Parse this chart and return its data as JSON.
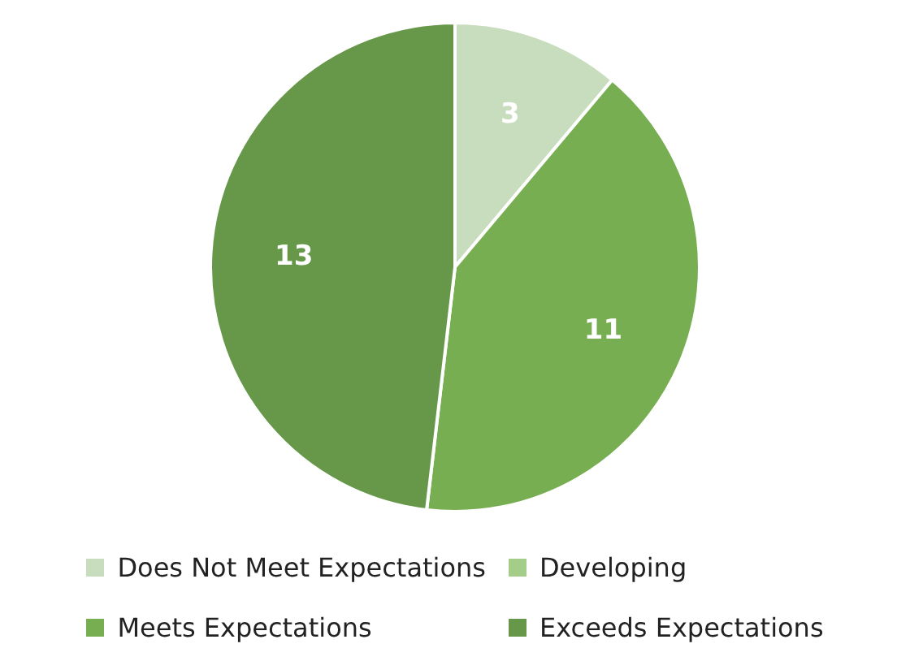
{
  "chart_data": {
    "type": "pie",
    "categories": [
      "Does Not Meet Expectations",
      "Developing",
      "Meets Expectations",
      "Exceeds Expectations"
    ],
    "values": [
      3,
      0,
      11,
      13
    ],
    "value_labels": [
      "3",
      null,
      "11",
      "13"
    ],
    "colors": [
      "#c8dcbe",
      "#a5cd8a",
      "#78ae52",
      "#67984a"
    ],
    "legend": "bottom"
  }
}
